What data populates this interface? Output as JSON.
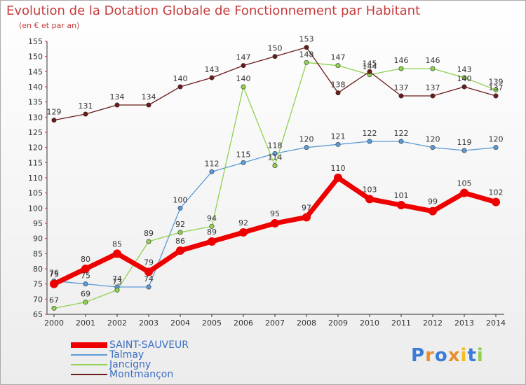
{
  "chart_data": {
    "type": "line",
    "title": "Evolution de la Dotation Globale de Fonctionnement par Habitant",
    "subtitle": "(en € et par an)",
    "xlabel": "",
    "ylabel": "",
    "ylim": [
      65,
      155
    ],
    "ytick_step": 5,
    "grid": false,
    "legend_position": "bottom-left",
    "categories": [
      "2000",
      "2001",
      "2002",
      "2003",
      "2004",
      "2005",
      "2006",
      "2007",
      "2008",
      "2009",
      "2010",
      "2011",
      "2012",
      "2013",
      "2014"
    ],
    "series": [
      {
        "name": "SAINT-SAUVEUR",
        "color": "#ee0000",
        "values": [
          75,
          80,
          85,
          79,
          86,
          89,
          92,
          95,
          97,
          110,
          103,
          101,
          99,
          105,
          102
        ]
      },
      {
        "name": "Talmay",
        "color": "#5b9bd5",
        "values": [
          76,
          75,
          74,
          74,
          100,
          112,
          115,
          118,
          120,
          121,
          122,
          122,
          120,
          119,
          120
        ]
      },
      {
        "name": "Jancigny",
        "color": "#8fd14f",
        "values": [
          67,
          69,
          73,
          89,
          92,
          94,
          140,
          114,
          148,
          147,
          144,
          146,
          146,
          143,
          139
        ]
      },
      {
        "name": "Montmançon",
        "color": "#6b1a1a",
        "values": [
          129,
          131,
          134,
          134,
          140,
          143,
          147,
          150,
          153,
          138,
          145,
          137,
          137,
          140,
          137
        ]
      }
    ]
  },
  "logo": {
    "letters": [
      "P",
      "r",
      "o",
      "x",
      "i",
      "t",
      "i"
    ],
    "colors": [
      "#3a7bd5",
      "#e8902a",
      "#3a7bd5",
      "#e8902a",
      "#f0c020",
      "#3a7bd5",
      "#8fd14f"
    ]
  }
}
